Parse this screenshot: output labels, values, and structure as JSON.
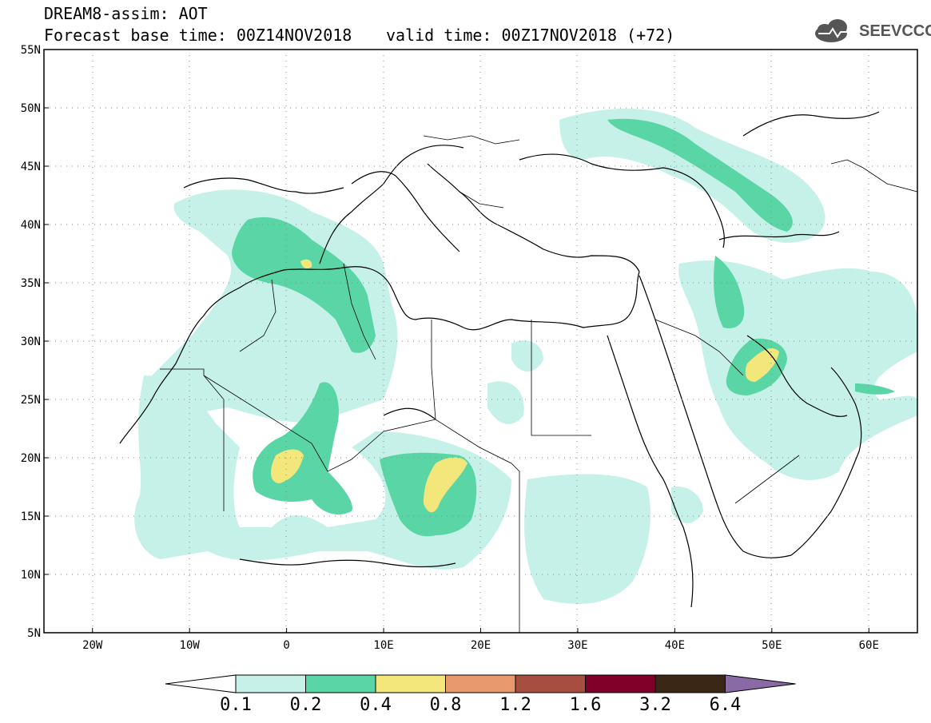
{
  "title": {
    "line1": "DREAM8-assim: AOT",
    "line2": "Forecast base time: 00Z14NOV2018",
    "valid": "valid time: 00Z17NOV2018 (+72)"
  },
  "logo": {
    "text": "SEEVCCC",
    "icon": "cloud-icon"
  },
  "map": {
    "lon_range": [
      -25,
      65
    ],
    "lat_range": [
      5,
      55
    ],
    "lat_ticks": [
      {
        "value": 55,
        "label": "55N"
      },
      {
        "value": 50,
        "label": "50N"
      },
      {
        "value": 45,
        "label": "45N"
      },
      {
        "value": 40,
        "label": "40N"
      },
      {
        "value": 35,
        "label": "35N"
      },
      {
        "value": 30,
        "label": "30N"
      },
      {
        "value": 25,
        "label": "25N"
      },
      {
        "value": 20,
        "label": "20N"
      },
      {
        "value": 15,
        "label": "15N"
      },
      {
        "value": 10,
        "label": "10N"
      },
      {
        "value": 5,
        "label": "5N"
      }
    ],
    "lon_ticks": [
      {
        "value": -20,
        "label": "20W"
      },
      {
        "value": -10,
        "label": "10W"
      },
      {
        "value": 0,
        "label": "0"
      },
      {
        "value": 10,
        "label": "10E"
      },
      {
        "value": 20,
        "label": "20E"
      },
      {
        "value": 30,
        "label": "30E"
      },
      {
        "value": 40,
        "label": "40E"
      },
      {
        "value": 50,
        "label": "50E"
      },
      {
        "value": 60,
        "label": "60E"
      }
    ],
    "colors": {
      "ocean": "#ffffff",
      "land_line": "#000000",
      "grid": "#888888"
    }
  },
  "colorbar": {
    "levels": [
      "0.1",
      "0.2",
      "0.4",
      "0.8",
      "1.2",
      "1.6",
      "3.2",
      "6.4"
    ],
    "colors": [
      "#ffffff",
      "#c6f1e9",
      "#5ad6a6",
      "#f3e67b",
      "#e89a6e",
      "#a74e40",
      "#80002a",
      "#3a2716",
      "#8a6aa5"
    ]
  }
}
